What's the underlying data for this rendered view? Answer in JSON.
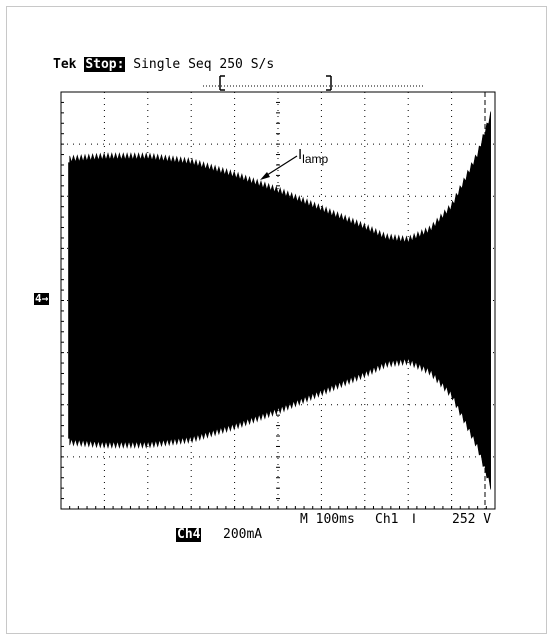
{
  "header": {
    "brand": "Tek",
    "run_state": "Stop:",
    "mode": "Single Seq",
    "sample_rate": "250 S/s"
  },
  "channel_marker": "4→",
  "annotation": {
    "main": "I",
    "sub": "lamp"
  },
  "footer": {
    "timebase": "M 100ms",
    "trigger_source": "Ch1",
    "trigger_slope_icon": "falling-edge-icon",
    "trigger_slope": "ⵏ",
    "trigger_level": "252 V",
    "channel": "Ch4",
    "scale": "200mA"
  },
  "chart_data": {
    "type": "line",
    "title": "",
    "xlabel": "",
    "ylabel": "",
    "x_unit": "s",
    "y_unit": "A",
    "xlim": [
      0,
      1.0
    ],
    "ylim": [
      -0.8,
      0.8
    ],
    "grid": true,
    "grid_divisions": {
      "x": 10,
      "y": 8
    },
    "series": [
      {
        "channel": "Ch4",
        "envelope_x": [
          0.02,
          0.1,
          0.2,
          0.3,
          0.4,
          0.5,
          0.6,
          0.7,
          0.75,
          0.8,
          0.85,
          0.9,
          0.93,
          0.96,
          0.99
        ],
        "envelope_upper": [
          0.53,
          0.54,
          0.54,
          0.52,
          0.47,
          0.41,
          0.34,
          0.27,
          0.23,
          0.22,
          0.26,
          0.35,
          0.45,
          0.55,
          0.7
        ],
        "envelope_lower": [
          -0.53,
          -0.54,
          -0.54,
          -0.52,
          -0.47,
          -0.41,
          -0.34,
          -0.27,
          -0.23,
          -0.22,
          -0.26,
          -0.35,
          -0.45,
          -0.55,
          -0.7
        ]
      }
    ],
    "colors": {
      "trace": "#000000",
      "grid": "#000000",
      "background": "#ffffff"
    }
  }
}
